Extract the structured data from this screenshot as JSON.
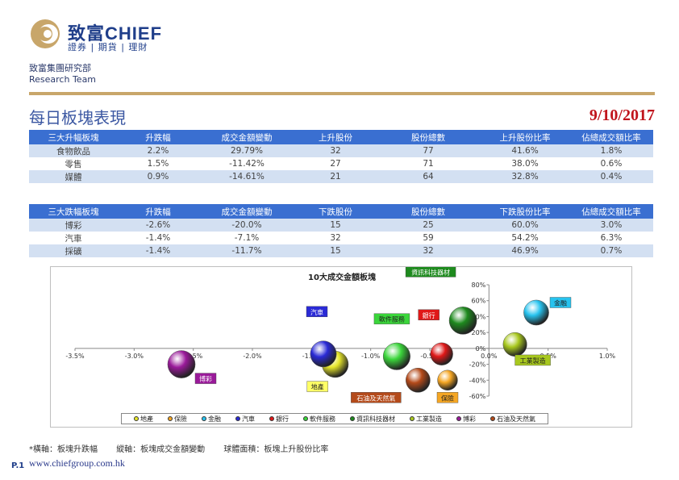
{
  "header": {
    "logo_cn": "致富",
    "logo_en": "CHIEF",
    "logo_sub": "證券 | 期貨 | 理財",
    "team_cn": "致富集團研究部",
    "team_en": "Research Team"
  },
  "title": "每日板塊表現",
  "date": "9/10/2017",
  "colors": {
    "accent_gold": "#c8a66a",
    "header_blue": "#3a6fd1",
    "row_blue": "#d3e0f2",
    "date_red": "#c0141c"
  },
  "top_table": {
    "headers": [
      "三大升幅板塊",
      "升跌幅",
      "成交金額變動",
      "上升股份",
      "股份總數",
      "上升股份比率",
      "佔總成交額比率"
    ],
    "rows": [
      [
        "食物飲品",
        "2.2%",
        "29.79%",
        "32",
        "77",
        "41.6%",
        "1.8%"
      ],
      [
        "零售",
        "1.5%",
        "-11.42%",
        "27",
        "71",
        "38.0%",
        "0.6%"
      ],
      [
        "媒體",
        "0.9%",
        "-14.61%",
        "21",
        "64",
        "32.8%",
        "0.4%"
      ]
    ]
  },
  "bottom_table": {
    "headers": [
      "三大跌幅板塊",
      "升跌幅",
      "成交金額變動",
      "下跌股份",
      "股份總數",
      "下跌股份比率",
      "佔總成交額比率"
    ],
    "rows": [
      [
        "博彩",
        "-2.6%",
        "-20.0%",
        "15",
        "25",
        "60.0%",
        "3.0%"
      ],
      [
        "汽車",
        "-1.4%",
        "-7.1%",
        "32",
        "59",
        "54.2%",
        "6.3%"
      ],
      [
        "採礦",
        "-1.4%",
        "-11.7%",
        "15",
        "32",
        "46.9%",
        "0.7%"
      ]
    ]
  },
  "chart_data": {
    "type": "scatter",
    "title": "10大成交金額板塊",
    "xlim": [
      -3.5,
      1.0
    ],
    "ylim": [
      -60,
      80
    ],
    "x_ticks": [
      "-3.5%",
      "-3.0%",
      "-2.5%",
      "-2.0%",
      "-1.5%",
      "-1.0%",
      "-0.5%",
      "0.0%",
      "0.5%",
      "1.0%"
    ],
    "x_tick_values": [
      -3.5,
      -3.0,
      -2.5,
      -2.0,
      -1.5,
      -1.0,
      -0.5,
      0.0,
      0.5,
      1.0
    ],
    "y_ticks": [
      "80%",
      "60%",
      "40%",
      "20%",
      "0%",
      "-20%",
      "-40%",
      "-60%"
    ],
    "y_tick_values": [
      80,
      60,
      40,
      20,
      0,
      -20,
      -40,
      -60
    ],
    "series": [
      {
        "name": "地產",
        "x": -1.3,
        "y": -20,
        "size": 0.55,
        "color": "#e6e62a"
      },
      {
        "name": "保險",
        "x": -0.35,
        "y": -40,
        "size": 0.32,
        "color": "#f5a623"
      },
      {
        "name": "金融",
        "x": 0.4,
        "y": 45,
        "size": 0.5,
        "color": "#27c3ef"
      },
      {
        "name": "汽車",
        "x": -1.4,
        "y": -7,
        "size": 0.54,
        "color": "#2a2ad6"
      },
      {
        "name": "銀行",
        "x": -0.4,
        "y": -7,
        "size": 0.4,
        "color": "#e01818"
      },
      {
        "name": "軟件服務",
        "x": -0.78,
        "y": -10,
        "size": 0.58,
        "color": "#3bd63b"
      },
      {
        "name": "資訊科技器材",
        "x": -0.22,
        "y": 35,
        "size": 0.6,
        "color": "#1e8a1e"
      },
      {
        "name": "工業製造",
        "x": 0.22,
        "y": 5,
        "size": 0.45,
        "color": "#a8c81e"
      },
      {
        "name": "博彩",
        "x": -2.6,
        "y": -20,
        "size": 0.6,
        "color": "#9a1a9a"
      },
      {
        "name": "石油及天然氣",
        "x": -0.6,
        "y": -40,
        "size": 0.47,
        "color": "#b44a1a"
      }
    ],
    "labels": [
      {
        "name": "資訊科技器材",
        "bg": "#1e8a1e",
        "fg": "#ffffff"
      },
      {
        "name": "金融",
        "bg": "#27c3ef",
        "fg": "#222222"
      },
      {
        "name": "汽車",
        "bg": "#2a2ad6",
        "fg": "#ffffff"
      },
      {
        "name": "銀行",
        "bg": "#e01818",
        "fg": "#ffffff"
      },
      {
        "name": "軟件服務",
        "bg": "#3bd63b",
        "fg": "#222222"
      },
      {
        "name": "工業製造",
        "bg": "#a8c81e",
        "fg": "#222222"
      },
      {
        "name": "地產",
        "bg": "#ffff66",
        "fg": "#222222"
      },
      {
        "name": "石油及天然氣",
        "bg": "#b44a1a",
        "fg": "#ffffff"
      },
      {
        "name": "博彩",
        "bg": "#9a1a9a",
        "fg": "#ffffff"
      },
      {
        "name": "保險",
        "bg": "#f5a623",
        "fg": "#222222"
      }
    ],
    "legend": [
      "地產",
      "保險",
      "金融",
      "汽車",
      "銀行",
      "軟件服務",
      "資訊科技器材",
      "工業製造",
      "博彩",
      "石油及天然氣"
    ],
    "legend_placement": "bottom",
    "grid": false
  },
  "footnote": {
    "x_axis": "*橫軸：板塊升跌幅",
    "y_axis": "縱軸：板塊成交金額變動",
    "bubble": "球體面積：板塊上升股份比率"
  },
  "website": "www.chiefgroup.com.hk",
  "page_number": "P.1"
}
